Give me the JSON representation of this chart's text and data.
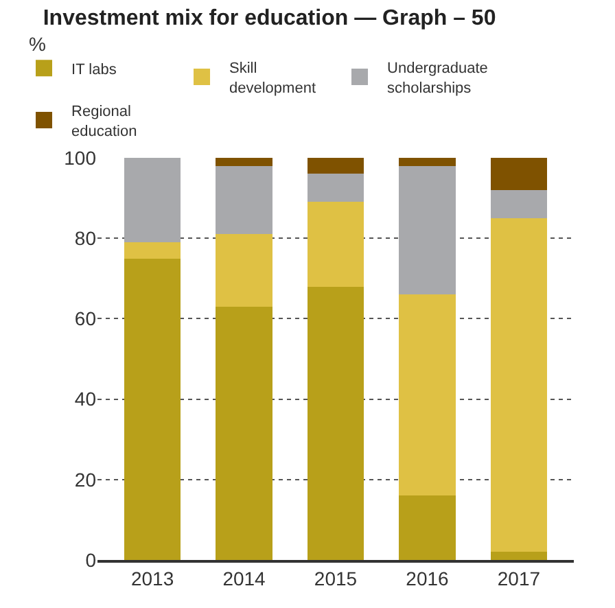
{
  "chart_data": {
    "type": "bar",
    "title": "Investment mix for education — Graph – 50",
    "annotations": [
      "%"
    ],
    "categories": [
      "2013",
      "2014",
      "2015",
      "2016",
      "2017"
    ],
    "stacked": true,
    "series": [
      {
        "name": "IT labs",
        "color": "#b8a01a",
        "values": [
          75,
          63,
          68,
          16,
          2
        ]
      },
      {
        "name": "Skill development",
        "color": "#dfc144",
        "values": [
          4,
          18,
          21,
          50,
          83
        ]
      },
      {
        "name": "Undergraduate scholarships",
        "color": "#a8a9ac",
        "values": [
          21,
          17,
          7,
          32,
          7
        ]
      },
      {
        "name": "Regional education",
        "color": "#7f5200",
        "values": [
          0,
          2,
          4,
          2,
          8
        ]
      }
    ],
    "ylim": [
      0,
      100
    ],
    "yticks": [
      0,
      20,
      40,
      60,
      80,
      100
    ],
    "grid": "y",
    "legend": "top"
  }
}
